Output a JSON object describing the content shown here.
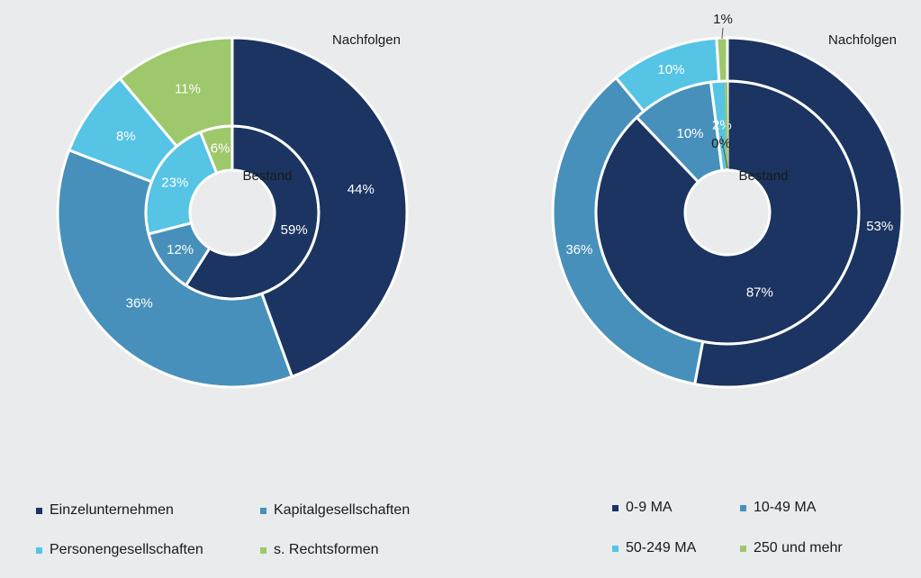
{
  "colors": {
    "navy": "#1b3461",
    "steel_blue": "#4790bb",
    "light_blue": "#55c4e5",
    "green": "#9dc86b",
    "background": "#e9ebec"
  },
  "chart_data": [
    {
      "type": "pie",
      "variant": "nested-donut",
      "inner_ring_label": "Bestand",
      "outer_ring_label": "Nachfolgen",
      "categories": [
        "Einzelunternehmen",
        "Kapitalgesellschaften",
        "Personengesellschaften",
        "s. Rechtsformen"
      ],
      "series": [
        {
          "name": "Bestand",
          "ring": "inner",
          "values": [
            59,
            12,
            23,
            6
          ],
          "labels": [
            "59%",
            "12%",
            "23%",
            "6%"
          ]
        },
        {
          "name": "Nachfolgen",
          "ring": "outer",
          "values": [
            44,
            36,
            8,
            11
          ],
          "labels": [
            "44%",
            "36%",
            "8%",
            "11%"
          ]
        }
      ],
      "legend": [
        "Einzelunternehmen",
        "Kapitalgesellschaften",
        "Personengesellschaften",
        "s. Rechtsformen"
      ],
      "legend_placement": "bottom"
    },
    {
      "type": "pie",
      "variant": "nested-donut",
      "inner_ring_label": "Bestand",
      "outer_ring_label": "Nachfolgen",
      "categories": [
        "0-9 MA",
        "10-49 MA",
        "50-249 MA",
        "250 und mehr"
      ],
      "series": [
        {
          "name": "Bestand",
          "ring": "inner",
          "values": [
            87,
            10,
            2,
            0
          ],
          "labels": [
            "87%",
            "10%",
            "2%",
            "0%"
          ]
        },
        {
          "name": "Nachfolgen",
          "ring": "outer",
          "values": [
            53,
            36,
            10,
            1
          ],
          "labels": [
            "53%",
            "36%",
            "10%",
            "1%"
          ]
        }
      ],
      "legend": [
        "0-9 MA",
        "10-49 MA",
        "50-249 MA",
        "250 und mehr"
      ],
      "legend_placement": "bottom"
    }
  ]
}
